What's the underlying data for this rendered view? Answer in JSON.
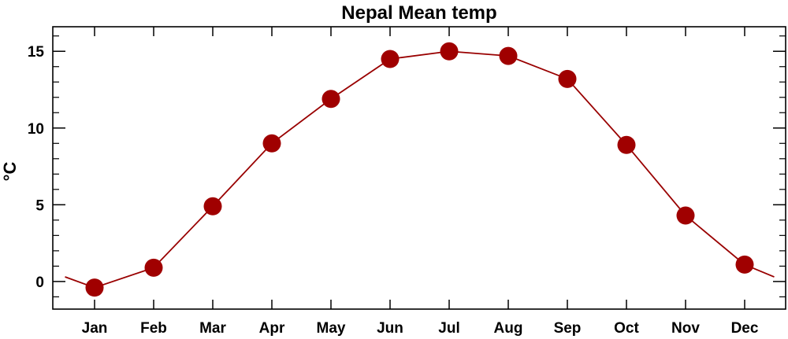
{
  "chart_data": {
    "type": "line",
    "title": "Nepal Mean temp",
    "ylabel": "°C",
    "xlabel": "",
    "categories": [
      "Jan",
      "Feb",
      "Mar",
      "Apr",
      "May",
      "Jun",
      "Jul",
      "Aug",
      "Sep",
      "Oct",
      "Nov",
      "Dec"
    ],
    "series": [
      {
        "name": "",
        "values": [
          -0.4,
          0.9,
          4.9,
          9.0,
          11.9,
          14.5,
          15.0,
          14.7,
          13.2,
          8.9,
          4.3,
          1.1
        ]
      }
    ],
    "wrap_values": {
      "start": 0.3,
      "end": 0.3
    },
    "ylim": [
      -1.8,
      16.6
    ],
    "yticks": [
      0,
      5,
      10,
      15
    ],
    "grid": false,
    "legend": "none",
    "colors": {
      "series": "#990000",
      "marker": "#a00000",
      "axes": "#000000"
    }
  }
}
